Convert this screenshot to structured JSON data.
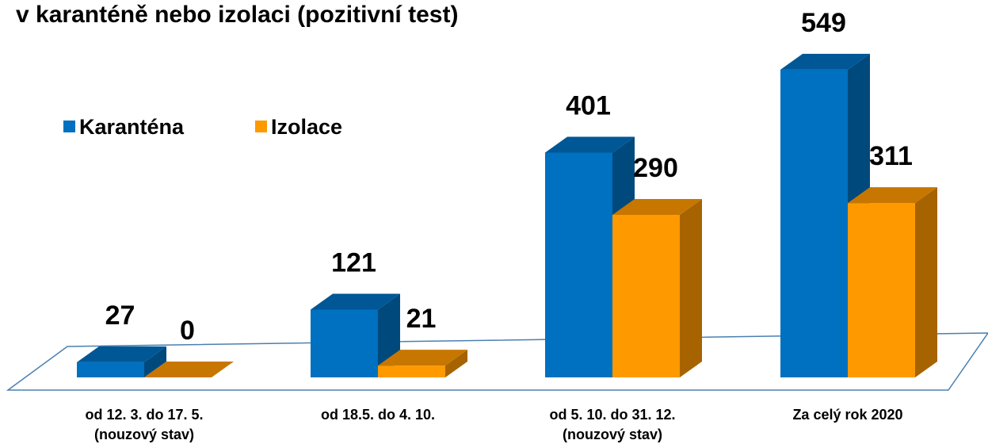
{
  "chart_data": {
    "type": "bar3d",
    "title": "v karanténě nebo izolaci (pozitivní test)",
    "categories": [
      [
        "od 12. 3. do 17. 5.",
        "(nouzový stav)"
      ],
      [
        "od 18.5. do 4. 10."
      ],
      [
        "od 5. 10. do 31. 12.",
        "(nouzový stav)"
      ],
      [
        "Za  celý rok 2020"
      ]
    ],
    "series": [
      {
        "name": "Karanténa",
        "color": "#0070c0",
        "values": [
          27,
          121,
          401,
          549
        ]
      },
      {
        "name": "Izolace",
        "color": "#ff9900",
        "values": [
          0,
          21,
          290,
          311
        ]
      }
    ],
    "legend": "upper left"
  }
}
